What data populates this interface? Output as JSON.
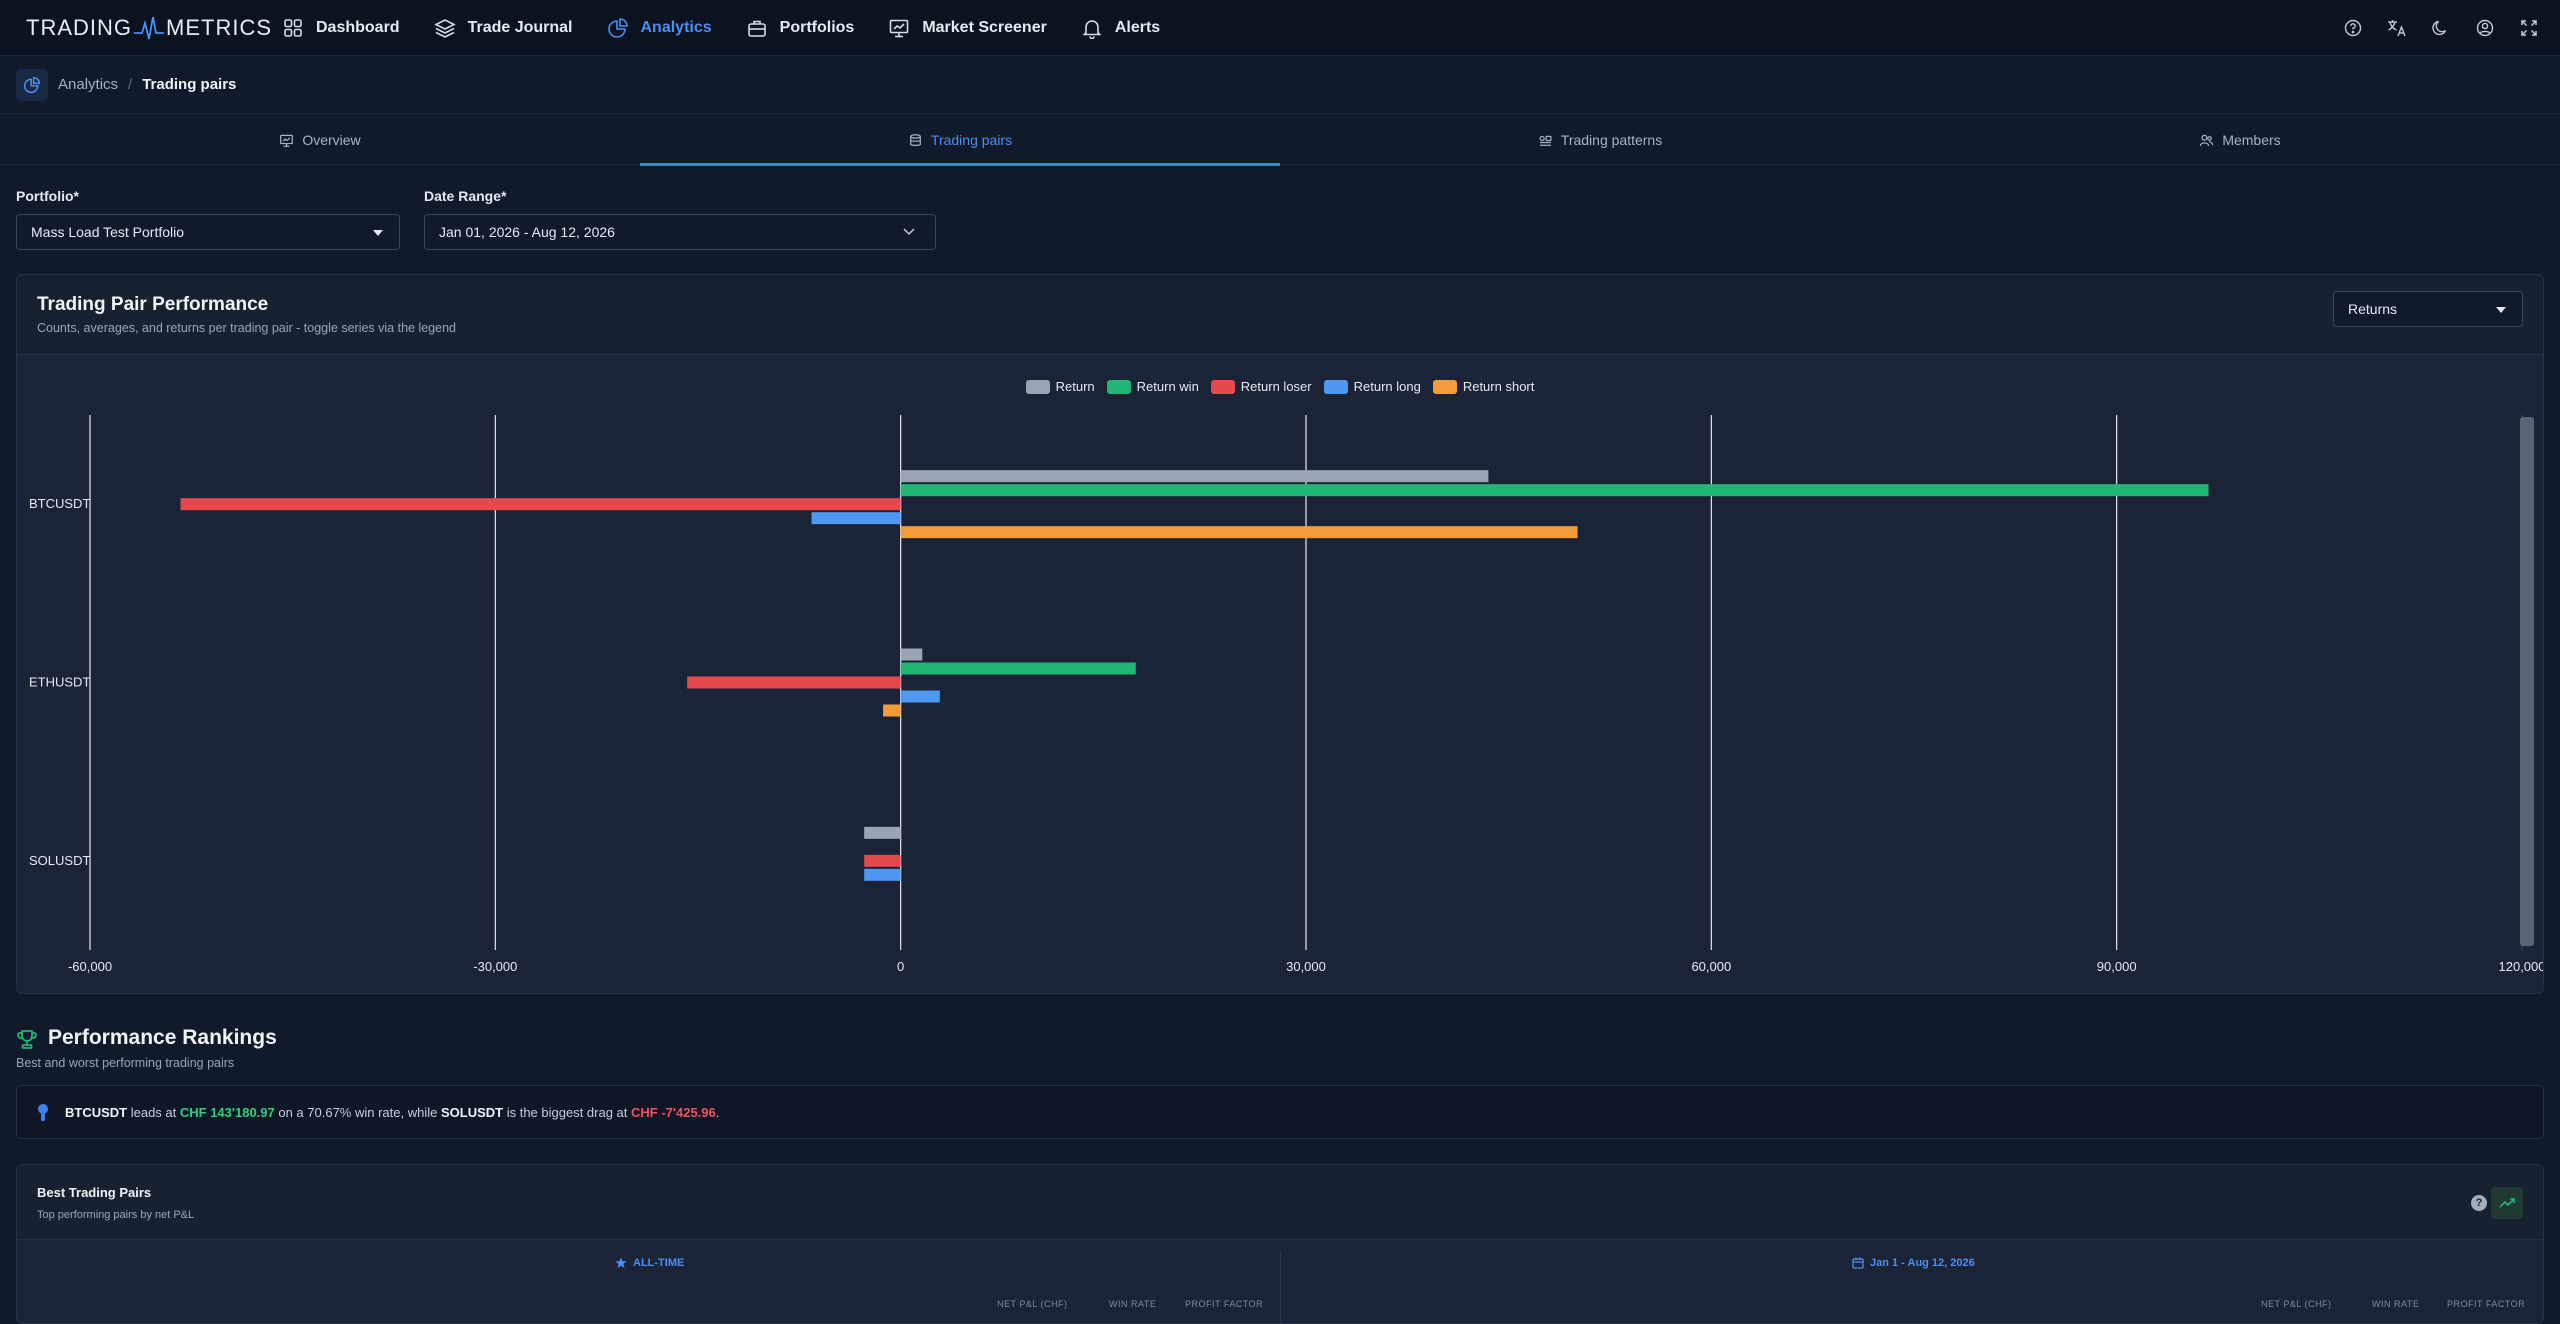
{
  "brand": {
    "left": "TRADING",
    "right": "METRICS"
  },
  "nav": [
    {
      "label": "Dashboard",
      "icon": "grid-icon",
      "active": false
    },
    {
      "label": "Trade Journal",
      "icon": "layers-icon",
      "active": false
    },
    {
      "label": "Analytics",
      "icon": "pie-chart-icon",
      "active": true
    },
    {
      "label": "Portfolios",
      "icon": "briefcase-icon",
      "active": false
    },
    {
      "label": "Market Screener",
      "icon": "presentation-icon",
      "active": false
    },
    {
      "label": "Alerts",
      "icon": "bell-icon",
      "active": false
    }
  ],
  "breadcrumb": {
    "parent": "Analytics",
    "separator": "/",
    "current": "Trading pairs"
  },
  "tabs": [
    {
      "label": "Overview",
      "icon": "presentation-icon"
    },
    {
      "label": "Trading pairs",
      "icon": "database-icon"
    },
    {
      "label": "Trading patterns",
      "icon": "patterns-icon"
    },
    {
      "label": "Members",
      "icon": "users-icon"
    }
  ],
  "filters": {
    "portfolio": {
      "label": "Portfolio*",
      "value": "Mass Load Test Portfolio"
    },
    "date_range": {
      "label": "Date Range*",
      "value": "Jan 01, 2026 - Aug 12, 2026"
    }
  },
  "chart_card": {
    "title": "Trading Pair Performance",
    "subtitle": "Counts, averages, and returns per trading pair - toggle series via the legend",
    "metric_select": "Returns"
  },
  "chart_data": {
    "type": "bar",
    "orientation": "horizontal",
    "categories": [
      "BTCUSDT",
      "ETHUSDT",
      "SOLUSDT"
    ],
    "series": [
      {
        "name": "Return",
        "color": "#9aa4b2",
        "values": [
          43500,
          1600,
          -2700
        ]
      },
      {
        "name": "Return win",
        "color": "#22b573",
        "values": [
          96800,
          17400,
          0
        ]
      },
      {
        "name": "Return loser",
        "color": "#e5484d",
        "values": [
          -53300,
          -15800,
          -2700
        ]
      },
      {
        "name": "Return long",
        "color": "#4f97f0",
        "values": [
          -6600,
          2900,
          -2700
        ]
      },
      {
        "name": "Return short",
        "color": "#f29c38",
        "values": [
          50100,
          -1300,
          0
        ]
      }
    ],
    "xlim": [
      -60000,
      120000
    ],
    "xticks": [
      "-60,000",
      "-30,000",
      "0",
      "30,000",
      "60,000",
      "90,000",
      "120,000"
    ],
    "legend_position": "top",
    "grid": true
  },
  "rankings": {
    "title": "Performance Rankings",
    "subtitle": "Best and worst performing trading pairs",
    "insight": {
      "leader": "BTCUSDT",
      "t1": " leads at ",
      "leader_value": "CHF 143'180.97",
      "t2": " on a 70.67% win rate, while ",
      "laggard": "SOLUSDT",
      "t3": " is the biggest drag at ",
      "laggard_value": "CHF -7'425.96",
      "t4": "."
    }
  },
  "best_pairs": {
    "title": "Best Trading Pairs",
    "subtitle": "Top performing pairs by net P&L",
    "left_label": "ALL-TIME",
    "right_label": "Jan 1 - Aug 12, 2026",
    "columns": [
      "NET P&L (CHF)",
      "WIN RATE",
      "PROFIT FACTOR"
    ]
  }
}
